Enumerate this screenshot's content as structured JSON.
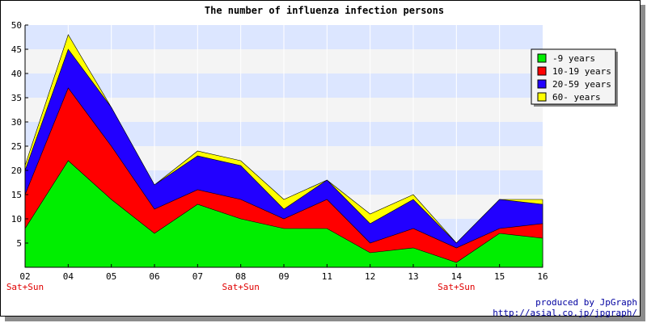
{
  "chart_data": {
    "type": "area",
    "stacked": true,
    "title": "The number of influenza infection persons",
    "categories": [
      "02",
      "04",
      "05",
      "06",
      "07",
      "08",
      "09",
      "11",
      "12",
      "13",
      "14",
      "15",
      "16"
    ],
    "weekend_note": "Sat+Sun",
    "weekend_categories": [
      "02",
      "08",
      "14"
    ],
    "ylim": [
      0,
      50
    ],
    "yticks": [
      5,
      10,
      15,
      20,
      25,
      30,
      35,
      40,
      45,
      50
    ],
    "grid": "horizontal bands",
    "legend_position": "top-right",
    "series": [
      {
        "name": "-9 years",
        "color": "#00ee00",
        "values": [
          8,
          22,
          14,
          7,
          13,
          10,
          8,
          8,
          3,
          4,
          1,
          7,
          6
        ]
      },
      {
        "name": "10-19 years",
        "color": "#ff0000",
        "values": [
          7,
          15,
          11,
          5,
          3,
          4,
          2,
          6,
          2,
          4,
          3,
          1,
          3
        ]
      },
      {
        "name": "20-59 years",
        "color": "#2200ff",
        "values": [
          5,
          8,
          8,
          5,
          7,
          7,
          2,
          4,
          4,
          6,
          1,
          6,
          4
        ]
      },
      {
        "name": "60- years",
        "color": "#ffff00",
        "values": [
          1,
          3,
          0,
          0,
          1,
          1,
          2,
          0,
          2,
          1,
          0,
          0,
          1
        ]
      }
    ]
  },
  "footer": {
    "line1": "produced by JpGraph",
    "line2": "http://asial.co.jp/jpgraph/"
  }
}
